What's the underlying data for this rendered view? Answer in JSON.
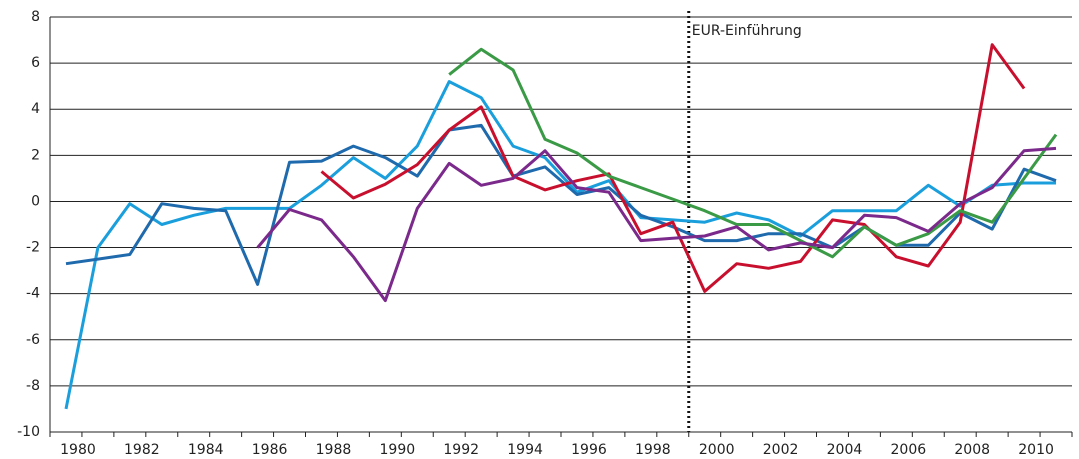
{
  "chart_data": {
    "type": "line",
    "categories": [
      "1980",
      null,
      "1982",
      null,
      "1984",
      null,
      "1986",
      null,
      "1988",
      null,
      "1990",
      null,
      "1992",
      null,
      "1994",
      null,
      "1996",
      null,
      "1998",
      null,
      "2000",
      null,
      "2002",
      null,
      "2004",
      null,
      "2006",
      null,
      "2008",
      null,
      "2010",
      null
    ],
    "series": [
      {
        "color": "#1a9fdc",
        "values": [
          -9.0,
          -2.0,
          -0.1,
          -1.0,
          -0.6,
          -0.3,
          -0.3,
          -0.3,
          0.7,
          1.9,
          1.0,
          2.4,
          5.2,
          4.5,
          2.4,
          1.9,
          0.4,
          0.9,
          -0.7,
          -0.8,
          -0.9,
          -0.5,
          -0.8,
          -1.5,
          -0.4,
          -0.4,
          -0.4,
          0.7,
          -0.2,
          0.7,
          0.8,
          0.8
        ]
      },
      {
        "color": "#1f6aad",
        "values": [
          -2.7,
          -2.5,
          -2.3,
          -0.1,
          -0.3,
          -0.4,
          -3.6,
          1.7,
          1.75,
          2.4,
          1.9,
          1.1,
          3.1,
          3.3,
          1.1,
          1.5,
          0.3,
          0.6,
          -0.6,
          -1.1,
          -1.7,
          -1.7,
          -1.4,
          -1.4,
          -2.0,
          -1.1,
          -1.9,
          -1.9,
          -0.5,
          -1.2,
          1.4,
          0.9
        ]
      },
      {
        "color": "#c8102e",
        "values": [
          null,
          null,
          null,
          null,
          null,
          null,
          null,
          null,
          1.3,
          0.15,
          0.75,
          1.6,
          3.1,
          4.1,
          1.1,
          0.5,
          0.9,
          1.2,
          -1.4,
          -0.9,
          -3.9,
          -2.7,
          -2.9,
          -2.6,
          -0.8,
          -1.0,
          -2.4,
          -2.8,
          -0.9,
          6.8,
          4.9,
          null
        ]
      },
      {
        "color": "#3a9a46",
        "values": [
          null,
          null,
          null,
          null,
          null,
          null,
          null,
          null,
          null,
          null,
          null,
          null,
          5.5,
          6.6,
          5.7,
          2.7,
          2.1,
          1.1,
          0.6,
          0.1,
          -0.4,
          -1.0,
          -1.0,
          -1.7,
          -2.4,
          -1.1,
          -1.9,
          -1.4,
          -0.4,
          -0.9,
          1.0,
          2.9
        ]
      },
      {
        "color": "#7b2a8c",
        "values": [
          null,
          null,
          null,
          null,
          null,
          null,
          -2.0,
          -0.35,
          -0.8,
          -2.4,
          -4.3,
          -0.3,
          1.65,
          0.7,
          1.0,
          2.2,
          0.6,
          0.4,
          -1.7,
          -1.6,
          -1.5,
          -1.1,
          -2.1,
          -1.8,
          -2.0,
          -0.6,
          -0.7,
          -1.3,
          -0.1,
          0.6,
          2.2,
          2.3
        ]
      }
    ],
    "ylim": [
      -10,
      8
    ],
    "yticks": [
      -10,
      -8,
      -6,
      -4,
      -2,
      0,
      2,
      4,
      6,
      8
    ],
    "grid": true,
    "annotations": [
      {
        "text": "EUR-Einführung",
        "category": "2000"
      }
    ]
  }
}
